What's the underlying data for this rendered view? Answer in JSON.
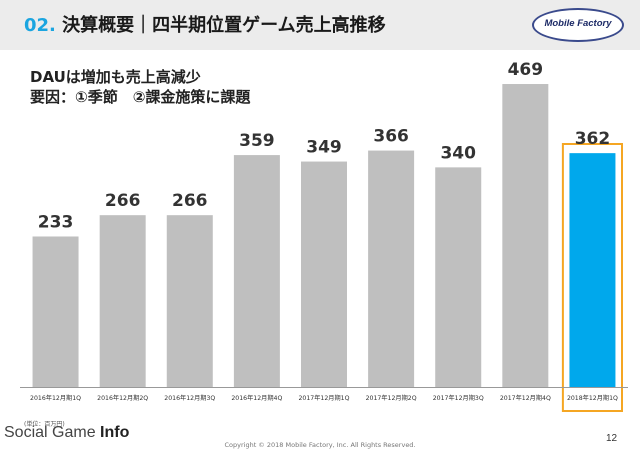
{
  "header": {
    "section_number": "02.",
    "title": "決算概要｜四半期位置ゲーム売上高推移",
    "logo_text": "Mobile Factory"
  },
  "headline": {
    "line1": "DAUは増加も売上高減少",
    "line2": "要因：①季節　②課金施策に課題"
  },
  "chart_data": {
    "type": "bar",
    "categories": [
      "2016年12月期1Q",
      "2016年12月期2Q",
      "2016年12月期3Q",
      "2016年12月期4Q",
      "2017年12月期1Q",
      "2017年12月期2Q",
      "2017年12月期3Q",
      "2017年12月期4Q",
      "2018年12月期1Q"
    ],
    "values": [
      233,
      266,
      266,
      359,
      349,
      366,
      340,
      469,
      362
    ],
    "ylim": [
      0,
      500
    ],
    "grid": false,
    "legend": "none",
    "data_labels": true,
    "highlight_index": 8,
    "colors": {
      "bar": "#bfbfbf",
      "highlight_bar": "#00a8ec",
      "highlight_border": "#f5a623",
      "label": "#333333",
      "baseline": "#999999"
    },
    "unit_note": "(単位：百万円)"
  },
  "footer": {
    "watermark_prefix": "Social Game ",
    "watermark_bold": "Info",
    "copyright": "Copyright © 2018 Mobile Factory, Inc. All Rights Reserved.",
    "page_number": "12"
  }
}
